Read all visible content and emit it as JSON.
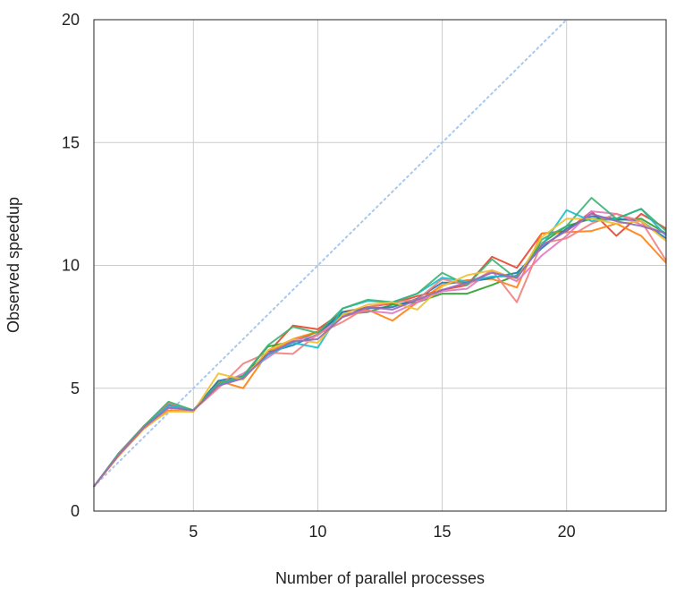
{
  "chart_data": {
    "type": "line",
    "title": "",
    "xlabel": "Number of parallel processes",
    "ylabel": "Observed speedup",
    "xlim": [
      1,
      24
    ],
    "ylim": [
      0,
      20
    ],
    "xticks": [
      5,
      10,
      15,
      20
    ],
    "yticks": [
      0,
      5,
      10,
      15,
      20
    ],
    "grid": true,
    "legend": "none",
    "x": [
      1,
      2,
      3,
      4,
      5,
      6,
      7,
      8,
      9,
      10,
      11,
      12,
      13,
      14,
      15,
      16,
      17,
      18,
      19,
      20,
      21,
      22,
      23,
      24
    ],
    "reference_line": {
      "x": [
        1,
        20
      ],
      "y": [
        1,
        20
      ],
      "color": "#a9c8ee"
    },
    "series": [
      {
        "color": "#e8442b",
        "values": [
          1,
          2.35,
          3.45,
          4.35,
          4.1,
          5.2,
          5.5,
          6.45,
          7.55,
          7.4,
          8.1,
          8.3,
          8.45,
          8.75,
          9.0,
          9.2,
          10.35,
          9.9,
          11.3,
          11.4,
          12.2,
          11.2,
          12.1,
          11.5
        ]
      },
      {
        "color": "#2ca02c",
        "values": [
          1,
          2.3,
          3.4,
          4.3,
          4.1,
          5.15,
          5.5,
          6.7,
          6.9,
          7.3,
          8.0,
          8.1,
          8.4,
          8.5,
          8.85,
          8.85,
          9.2,
          9.6,
          10.9,
          11.6,
          11.9,
          11.85,
          11.9,
          11.3
        ]
      },
      {
        "color": "#ff7f0e",
        "values": [
          1,
          2.25,
          3.35,
          4.1,
          4.05,
          5.3,
          5.0,
          6.45,
          7.0,
          7.3,
          7.9,
          8.2,
          7.75,
          8.5,
          9.2,
          9.4,
          9.45,
          9.1,
          11.3,
          11.35,
          11.4,
          11.7,
          11.2,
          10.1
        ]
      },
      {
        "color": "#1f77b4",
        "values": [
          1,
          2.3,
          3.4,
          4.3,
          4.1,
          5.3,
          5.5,
          6.45,
          6.75,
          7.2,
          8.1,
          8.25,
          8.3,
          8.65,
          9.3,
          9.3,
          9.5,
          9.7,
          10.7,
          11.5,
          12.0,
          11.9,
          11.8,
          11.1
        ]
      },
      {
        "color": "#e377c2",
        "values": [
          1,
          2.3,
          3.4,
          4.25,
          4.1,
          5.1,
          5.6,
          6.25,
          6.95,
          7.15,
          7.95,
          8.15,
          8.05,
          8.5,
          8.95,
          9.05,
          9.8,
          9.35,
          10.4,
          11.2,
          12.2,
          12.1,
          11.65,
          11.3
        ]
      },
      {
        "color": "#f08080",
        "values": [
          1,
          2.3,
          3.45,
          4.4,
          4.1,
          5.0,
          6.0,
          6.45,
          6.4,
          7.2,
          7.7,
          8.3,
          8.5,
          8.6,
          9.45,
          9.2,
          9.8,
          8.5,
          10.9,
          11.1,
          11.7,
          12.1,
          11.8,
          10.2
        ]
      },
      {
        "color": "#17becf",
        "values": [
          1,
          2.35,
          3.4,
          4.3,
          4.1,
          5.15,
          5.45,
          6.35,
          6.85,
          6.65,
          8.25,
          8.55,
          8.5,
          8.85,
          9.5,
          9.35,
          9.55,
          9.55,
          10.8,
          12.25,
          11.8,
          11.9,
          12.3,
          11.2
        ]
      },
      {
        "color": "#3cb371",
        "values": [
          1,
          2.35,
          3.45,
          4.45,
          4.1,
          5.2,
          5.5,
          6.75,
          7.5,
          7.25,
          8.25,
          8.6,
          8.5,
          8.85,
          9.7,
          9.2,
          10.25,
          9.45,
          11.05,
          11.6,
          12.75,
          11.9,
          12.3,
          11.4
        ]
      },
      {
        "color": "#f0c030",
        "values": [
          1,
          2.3,
          3.4,
          4.05,
          4.05,
          5.6,
          5.35,
          6.55,
          7.0,
          6.85,
          8.0,
          8.4,
          8.5,
          8.2,
          9.15,
          9.6,
          9.8,
          9.45,
          11.15,
          11.9,
          11.9,
          11.7,
          11.8,
          11.0
        ]
      },
      {
        "color": "#9467bd",
        "values": [
          1,
          2.3,
          3.4,
          4.2,
          4.1,
          5.1,
          5.4,
          6.4,
          6.9,
          7.0,
          7.9,
          8.3,
          8.2,
          8.6,
          9.0,
          9.3,
          9.7,
          9.5,
          10.8,
          11.4,
          12.1,
          11.8,
          11.6,
          11.3
        ]
      }
    ]
  }
}
